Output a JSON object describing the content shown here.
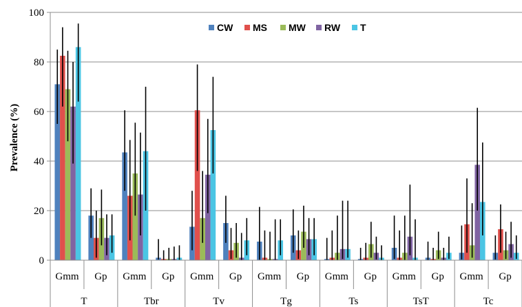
{
  "chart_data": {
    "type": "bar",
    "ylabel": "Prevalence (%)",
    "xlabel": "",
    "title": "",
    "ylim": [
      0,
      100
    ],
    "yticks": [
      0,
      20,
      40,
      60,
      80,
      100
    ],
    "grid": true,
    "legend_position": "top-center",
    "groups": [
      "T",
      "Tbr",
      "Tv",
      "Tg",
      "Ts",
      "TsT",
      "Tc"
    ],
    "subgroups": [
      "Gmm",
      "Gp"
    ],
    "series": [
      {
        "name": "CW",
        "color": "#4f81bd",
        "values": [
          71,
          18,
          43.5,
          1,
          13.5,
          15,
          7.5,
          10,
          0.5,
          0.5,
          5,
          1,
          3,
          3
        ],
        "err_low": [
          55,
          9,
          28,
          0.3,
          4,
          7,
          0.2,
          3,
          0,
          0,
          0.5,
          0.1,
          0.3,
          0.3
        ],
        "err_high": [
          85,
          29,
          60.5,
          8.5,
          28,
          26,
          21.5,
          20.5,
          9,
          5,
          18,
          7.5,
          14,
          10
        ]
      },
      {
        "name": "MS",
        "color": "#e0504c",
        "values": [
          82.5,
          9,
          26,
          0.5,
          60.5,
          4,
          1,
          4,
          1,
          1,
          1,
          0.5,
          14.5,
          12.5
        ],
        "err_low": [
          62,
          1,
          8,
          0,
          36,
          0.5,
          0,
          0.5,
          0,
          0,
          0,
          0,
          3,
          3
        ],
        "err_high": [
          94,
          20,
          48.5,
          4,
          79,
          13,
          12,
          12,
          12,
          7,
          12,
          5,
          33,
          22.5
        ]
      },
      {
        "name": "MW",
        "color": "#9bbb59",
        "values": [
          69,
          17,
          35,
          0.5,
          17,
          7,
          0.5,
          11.5,
          3,
          6.5,
          3,
          4,
          6,
          4
        ],
        "err_low": [
          48,
          6,
          18,
          0,
          7,
          1,
          0,
          5,
          0,
          1,
          0,
          0.5,
          1,
          0.5
        ],
        "err_high": [
          84.5,
          28.5,
          55.5,
          5,
          36,
          15,
          11.5,
          22,
          18,
          15.5,
          18,
          11.5,
          23,
          11.5
        ]
      },
      {
        "name": "RW",
        "color": "#8064a2",
        "values": [
          62,
          9,
          26.5,
          0.5,
          34.5,
          1,
          0.5,
          8.5,
          4.5,
          3,
          9.5,
          1,
          38.5,
          6.5
        ],
        "err_low": [
          39,
          2,
          10,
          0,
          19,
          0,
          0,
          2,
          0.5,
          0.3,
          2,
          0,
          20,
          1
        ],
        "err_high": [
          80,
          18.5,
          51.5,
          5.5,
          57,
          11,
          16.5,
          17,
          24,
          9.5,
          30.5,
          5,
          61.5,
          15.5
        ]
      },
      {
        "name": "T",
        "color": "#4bc5e4",
        "values": [
          86,
          10,
          44,
          1,
          52.5,
          8,
          8,
          8.5,
          4.5,
          1,
          1,
          3,
          23.5,
          3
        ],
        "err_low": [
          64,
          3,
          20,
          0.2,
          35,
          2,
          2,
          2,
          1,
          0,
          0,
          0.5,
          10,
          0.5
        ],
        "err_high": [
          95.5,
          18.5,
          70,
          6,
          74,
          17,
          16.5,
          17,
          24,
          6,
          16.5,
          9.5,
          47.5,
          10
        ]
      }
    ]
  }
}
